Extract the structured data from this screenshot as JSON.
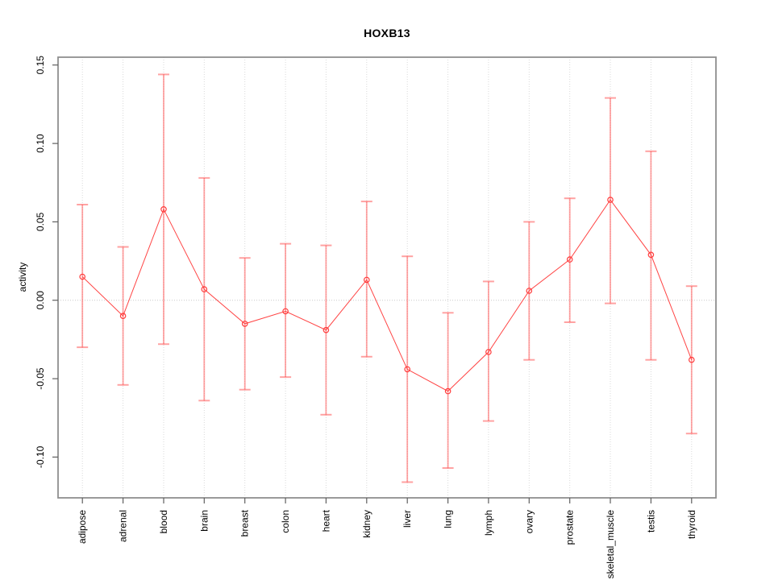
{
  "chart_data": {
    "type": "line",
    "title": "HOXB13",
    "xlabel": "",
    "ylabel": "activity",
    "legend": "none",
    "marker": "open-circle",
    "error_bars": true,
    "categories": [
      "adipose",
      "adrenal",
      "blood",
      "brain",
      "breast",
      "colon",
      "heart",
      "kidney",
      "liver",
      "lung",
      "lymph",
      "ovary",
      "prostate",
      "skeletal_muscle",
      "testis",
      "thyroid"
    ],
    "series": [
      {
        "name": "HOXB13 activity",
        "values": [
          0.015,
          -0.01,
          0.058,
          0.007,
          -0.015,
          -0.007,
          -0.019,
          0.013,
          -0.044,
          -0.058,
          -0.033,
          0.006,
          0.026,
          0.064,
          0.029,
          -0.038
        ],
        "upper": [
          0.061,
          0.034,
          0.144,
          0.078,
          0.027,
          0.036,
          0.035,
          0.063,
          0.028,
          -0.008,
          0.012,
          0.05,
          0.065,
          0.129,
          0.095,
          0.009
        ],
        "lower": [
          -0.03,
          -0.054,
          -0.028,
          -0.064,
          -0.057,
          -0.049,
          -0.073,
          -0.036,
          -0.116,
          -0.107,
          -0.077,
          -0.038,
          -0.014,
          -0.002,
          -0.038,
          -0.085
        ]
      }
    ],
    "ylim": [
      -0.126,
      0.155
    ],
    "xlim": [
      0.4,
      16.6
    ],
    "ytick_values": [
      0.15,
      0.1,
      0.05,
      0.0,
      -0.05,
      -0.1
    ],
    "ytick_labels": [
      "0.15",
      "0.10",
      "0.05",
      "0.00",
      "-0.05",
      "-0.10"
    ],
    "grid": {
      "vertical": "dotted line at every category",
      "horizontal": "dotted line at zero only"
    },
    "colors": {
      "series_line": "#ff4444",
      "point": "#ff3b3b",
      "errorbar": "#ff5555",
      "grid": "#d9d9d9",
      "zero_line": "#c9c9c9",
      "box": "#8f8f8f",
      "tick": "#5f5f5f",
      "text": "#000000"
    },
    "errorbar_opacity": 0.55
  }
}
